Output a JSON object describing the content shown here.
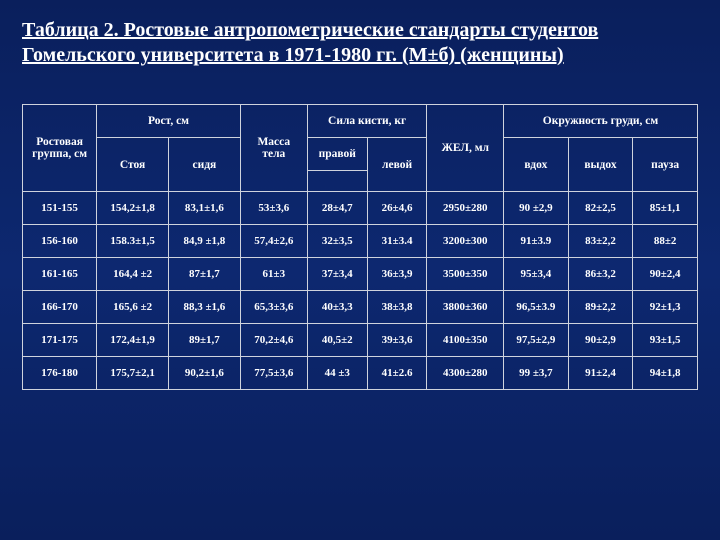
{
  "title": "Таблица 2. Ростовые антропометрические стандарты студентов Гомельского университета в 1971-1980 гг. (М±б) (женщины)",
  "headers": {
    "group": "Ростовая группа, см",
    "height": "Рост, см",
    "height_stand": "Стоя",
    "height_sit": "сидя",
    "mass": "Масса тела",
    "hand": "Сила кисти, кг",
    "hand_right": "правой",
    "hand_left": "левой",
    "zhel": "ЖЕЛ, мл",
    "chest": "Окружность груди, см",
    "chest_in": "вдох",
    "chest_out": "выдох",
    "chest_pause": "пауза"
  },
  "rows": [
    {
      "g": "151-155",
      "stand": "154,2±1,8",
      "sit": "83,1±1,6",
      "mass": "53±3,6",
      "hr": "28±4,7",
      "hl": "26±4,6",
      "zhel": "2950±280",
      "cin": "90 ±2,9",
      "cout": "82±2,5",
      "cp": "85±1,1"
    },
    {
      "g": "156-160",
      "stand": "158.3±1,5",
      "sit": "84,9 ±1,8",
      "mass": "57,4±2,6",
      "hr": "32±3,5",
      "hl": "31±3.4",
      "zhel": "3200±300",
      "cin": "91±3.9",
      "cout": "83±2,2",
      "cp": "88±2"
    },
    {
      "g": "161-165",
      "stand": "164,4 ±2",
      "sit": "87±1,7",
      "mass": "61±3",
      "hr": "37±3,4",
      "hl": "36±3,9",
      "zhel": "3500±350",
      "cin": "95±3,4",
      "cout": "86±3,2",
      "cp": "90±2,4"
    },
    {
      "g": "166-170",
      "stand": "165,6 ±2",
      "sit": "88,3 ±1,6",
      "mass": "65,3±3,6",
      "hr": "40±3,3",
      "hl": "38±3,8",
      "zhel": "3800±360",
      "cin": "96,5±3.9",
      "cout": "89±2,2",
      "cp": "92±1,3"
    },
    {
      "g": "171-175",
      "stand": "172,4±1,9",
      "sit": "89±1,7",
      "mass": "70,2±4,6",
      "hr": "40,5±2",
      "hl": "39±3,6",
      "zhel": "4100±350",
      "cin": "97,5±2,9",
      "cout": "90±2,9",
      "cp": "93±1,5"
    },
    {
      "g": "176-180",
      "stand": "175,7±2,1",
      "sit": "90,2±1,6",
      "mass": "77,5±3,6",
      "hr": "44 ±3",
      "hl": "41±2.6",
      "zhel": "4300±280",
      "cin": "99 ±3,7",
      "cout": "91±2,4",
      "cp": "94±1,8"
    }
  ],
  "style": {
    "bg_top": "#0a1f5c",
    "bg_mid": "#0d2870",
    "text_color": "#ffffff",
    "border_color": "#cfd3dd",
    "title_fontsize": 20,
    "cell_fontsize": 11
  }
}
